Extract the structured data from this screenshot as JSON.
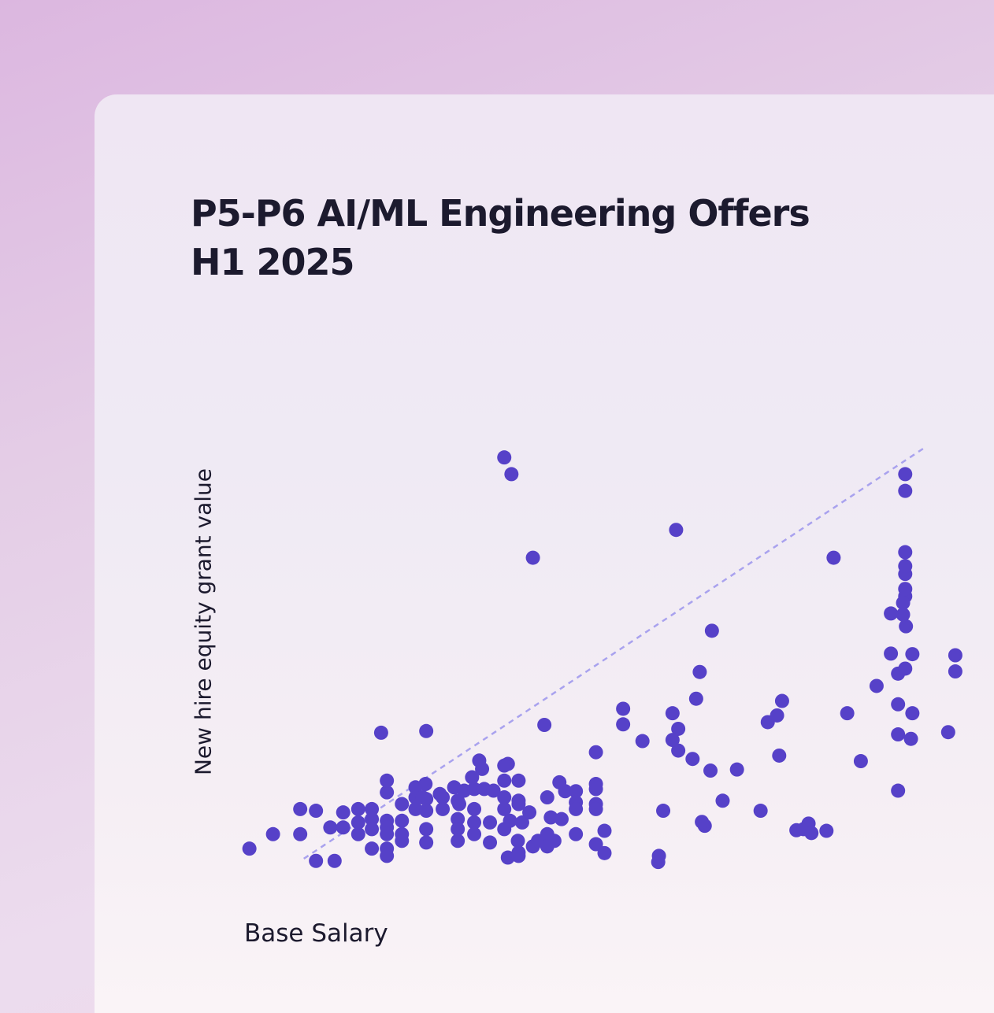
{
  "chart_data": {
    "type": "scatter",
    "title_lines": [
      "P5-P6 AI/ML Engineering Offers",
      "H1 2025"
    ],
    "xlabel": "Base Salary",
    "ylabel": "New hire equity grant value",
    "xlim": [
      0,
      100
    ],
    "ylim": [
      0,
      100
    ],
    "grid": false,
    "axes_visible": false,
    "colors": {
      "point": "#5641c8",
      "trendline": "#a9a2ee"
    },
    "trendline": {
      "style": "dashed",
      "points": [
        [
          8,
          1
        ],
        [
          95,
          75
        ]
      ]
    },
    "points": [
      [
        0.4,
        2.8
      ],
      [
        3.7,
        5.4
      ],
      [
        7.5,
        5.4
      ],
      [
        9.7,
        0.6
      ],
      [
        12.3,
        0.6
      ],
      [
        7.5,
        9.9
      ],
      [
        9.7,
        9.6
      ],
      [
        11.7,
        6.6
      ],
      [
        13.5,
        9.3
      ],
      [
        13.5,
        6.6
      ],
      [
        15.6,
        9.9
      ],
      [
        15.6,
        5.4
      ],
      [
        15.6,
        7.5
      ],
      [
        17.5,
        9.9
      ],
      [
        17.5,
        8.1
      ],
      [
        17.5,
        6.3
      ],
      [
        17.5,
        2.8
      ],
      [
        19.6,
        7.8
      ],
      [
        19.6,
        6.6
      ],
      [
        19.6,
        5.4
      ],
      [
        19.6,
        2.8
      ],
      [
        19.6,
        1.5
      ],
      [
        19.6,
        12.9
      ],
      [
        19.6,
        15.0
      ],
      [
        21.7,
        5.4
      ],
      [
        21.7,
        7.8
      ],
      [
        21.7,
        4.2
      ],
      [
        21.7,
        10.8
      ],
      [
        18.8,
        23.6
      ],
      [
        23.6,
        9.9
      ],
      [
        23.6,
        12.0
      ],
      [
        23.6,
        13.8
      ],
      [
        25.0,
        14.4
      ],
      [
        25.1,
        11.7
      ],
      [
        25.1,
        9.6
      ],
      [
        25.1,
        6.3
      ],
      [
        25.1,
        3.9
      ],
      [
        24.6,
        12.0
      ],
      [
        25.1,
        23.9
      ],
      [
        27.4,
        12.0
      ],
      [
        27.0,
        12.6
      ],
      [
        29.0,
        13.8
      ],
      [
        29.7,
        10.8
      ],
      [
        27.4,
        9.9
      ],
      [
        29.5,
        8.1
      ],
      [
        29.5,
        6.3
      ],
      [
        29.5,
        4.2
      ],
      [
        29.5,
        11.4
      ],
      [
        30.4,
        13.2
      ],
      [
        31.8,
        13.5
      ],
      [
        31.8,
        9.9
      ],
      [
        31.8,
        7.5
      ],
      [
        31.8,
        5.4
      ],
      [
        32.5,
        18.6
      ],
      [
        32.9,
        17.1
      ],
      [
        31.5,
        15.6
      ],
      [
        33.2,
        13.5
      ],
      [
        34.5,
        13.2
      ],
      [
        34.0,
        7.5
      ],
      [
        34.0,
        3.9
      ],
      [
        36.0,
        6.3
      ],
      [
        36.0,
        9.9
      ],
      [
        36.0,
        12.0
      ],
      [
        36.0,
        15.0
      ],
      [
        36.5,
        18.0
      ],
      [
        38.0,
        2.1
      ],
      [
        38.5,
        7.5
      ],
      [
        37.9,
        4.2
      ],
      [
        38.0,
        10.8
      ],
      [
        36.5,
        1.2
      ],
      [
        38.0,
        15.0
      ],
      [
        36.0,
        17.7
      ],
      [
        38.0,
        1.5
      ],
      [
        36.8,
        7.8
      ],
      [
        38.0,
        11.4
      ],
      [
        39.5,
        9.3
      ],
      [
        40.0,
        3.2
      ],
      [
        40.7,
        4.2
      ],
      [
        42.0,
        5.4
      ],
      [
        42.0,
        3.2
      ],
      [
        43.0,
        4.2
      ],
      [
        44.5,
        13.1
      ],
      [
        44.0,
        8.1
      ],
      [
        42.0,
        12.0
      ],
      [
        42.5,
        8.4
      ],
      [
        41.6,
        25.0
      ],
      [
        43.7,
        14.7
      ],
      [
        46.0,
        5.4
      ],
      [
        46.0,
        13.1
      ],
      [
        46.0,
        11.1
      ],
      [
        46.0,
        9.9
      ],
      [
        48.8,
        13.5
      ],
      [
        48.8,
        10.8
      ],
      [
        48.8,
        9.9
      ],
      [
        48.8,
        3.6
      ],
      [
        48.8,
        14.4
      ],
      [
        48.8,
        20.1
      ],
      [
        50.0,
        2.0
      ],
      [
        50.0,
        6.0
      ],
      [
        52.6,
        27.9
      ],
      [
        52.6,
        25.1
      ],
      [
        55.3,
        22.1
      ],
      [
        57.5,
        0.4
      ],
      [
        57.6,
        1.5
      ],
      [
        58.2,
        9.6
      ],
      [
        60.3,
        20.4
      ],
      [
        60.3,
        24.3
      ],
      [
        62.3,
        18.9
      ],
      [
        64.0,
        6.9
      ],
      [
        59.5,
        27.1
      ],
      [
        59.5,
        22.3
      ],
      [
        62.8,
        29.7
      ],
      [
        63.6,
        7.6
      ],
      [
        64.8,
        16.8
      ],
      [
        66.5,
        11.4
      ],
      [
        63.3,
        34.5
      ],
      [
        65.0,
        41.9
      ],
      [
        68.5,
        17.0
      ],
      [
        71.8,
        9.6
      ],
      [
        72.8,
        25.5
      ],
      [
        74.1,
        26.7
      ],
      [
        74.4,
        19.5
      ],
      [
        74.8,
        29.3
      ],
      [
        76.8,
        6.1
      ],
      [
        77.8,
        6.3
      ],
      [
        78.5,
        7.3
      ],
      [
        78.9,
        5.6
      ],
      [
        81.0,
        6.0
      ],
      [
        83.9,
        27.1
      ],
      [
        85.8,
        18.5
      ],
      [
        90.0,
        37.8
      ],
      [
        91.0,
        34.2
      ],
      [
        91.0,
        28.7
      ],
      [
        91.0,
        23.3
      ],
      [
        91.0,
        13.2
      ],
      [
        92.0,
        35.1
      ],
      [
        92.1,
        42.7
      ],
      [
        92.0,
        48.1
      ],
      [
        92.0,
        49.4
      ],
      [
        93.0,
        37.7
      ],
      [
        93.0,
        27.1
      ],
      [
        92.8,
        22.5
      ],
      [
        91.7,
        46.9
      ],
      [
        91.7,
        44.8
      ],
      [
        92.0,
        52.1
      ],
      [
        92.0,
        53.5
      ],
      [
        98.0,
        23.7
      ],
      [
        99.0,
        37.5
      ],
      [
        99.0,
        34.6
      ],
      [
        36.0,
        73.0
      ],
      [
        37.0,
        70.0
      ],
      [
        40.0,
        55.0
      ],
      [
        60.0,
        60.0
      ],
      [
        92.0,
        70.0
      ],
      [
        92.0,
        67.0
      ],
      [
        82.0,
        55.0
      ],
      [
        90.0,
        45.0
      ],
      [
        88.0,
        32.0
      ],
      [
        92.0,
        56.0
      ]
    ]
  }
}
